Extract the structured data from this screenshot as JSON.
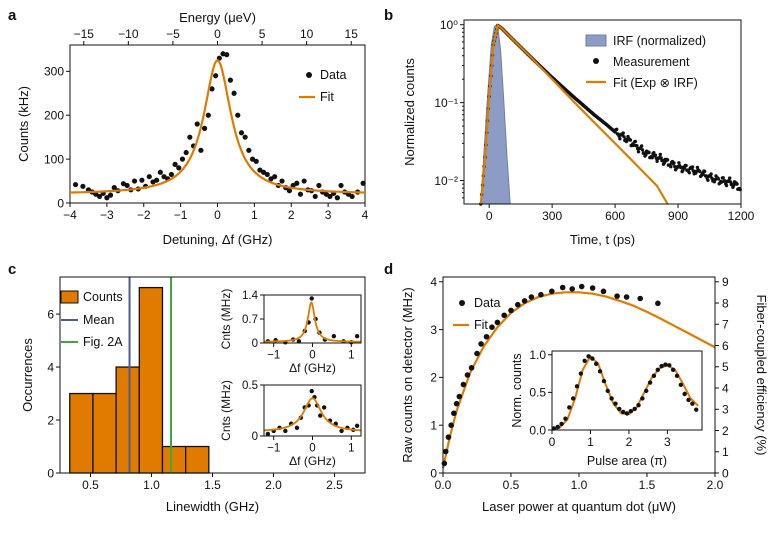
{
  "colors": {
    "fit": "#E07B00",
    "irf": "#8C9CC4",
    "bar": "#E07B00",
    "mean": "#4A5C90",
    "fig2a": "#3BAA3B",
    "data": "#111111"
  },
  "chart_data": [
    {
      "id": "a",
      "panel_label": "a",
      "type": "scatter",
      "xlabel": "Detuning, Δf (GHz)",
      "ylabel": "Counts (kHz)",
      "top_axis_label": "Energy (μeV)",
      "xlim": [
        -4,
        4
      ],
      "ylim": [
        0,
        360
      ],
      "xticks": [
        -4,
        -3,
        -2,
        -1,
        0,
        1,
        2,
        3,
        4
      ],
      "xtick_labels": [
        "−4",
        "−3",
        "−2",
        "−1",
        "0",
        "1",
        "2",
        "3",
        "4"
      ],
      "yticks": [
        0,
        100,
        200,
        300
      ],
      "ytick_labels": [
        "0",
        "100",
        "200",
        "300"
      ],
      "top_ticks": [
        -15,
        -10,
        -5,
        0,
        5,
        10,
        15
      ],
      "top_tick_labels": [
        "−15",
        "−10",
        "−5",
        "0",
        "5",
        "10",
        "15"
      ],
      "ev_per_ghz": 4.136,
      "legend": [
        "Data",
        "Fit"
      ],
      "fit": {
        "model": "lorentzian",
        "amplitude": 305,
        "offset": 20,
        "center": 0,
        "fwhm": 0.9
      },
      "series": [
        {
          "name": "Data",
          "x": [
            -3.85,
            -3.65,
            -3.5,
            -3.4,
            -3.3,
            -3.2,
            -3.1,
            -3.0,
            -2.9,
            -2.8,
            -2.7,
            -2.55,
            -2.45,
            -2.35,
            -2.25,
            -2.15,
            -2.05,
            -1.95,
            -1.85,
            -1.75,
            -1.65,
            -1.55,
            -1.45,
            -1.35,
            -1.25,
            -1.15,
            -1.05,
            -0.95,
            -0.85,
            -0.75,
            -0.65,
            -0.55,
            -0.45,
            -0.35,
            -0.25,
            -0.15,
            -0.05,
            0.05,
            0.15,
            0.25,
            0.35,
            0.45,
            0.55,
            0.65,
            0.75,
            0.85,
            0.95,
            1.05,
            1.15,
            1.25,
            1.35,
            1.45,
            1.55,
            1.65,
            1.75,
            1.85,
            1.95,
            2.05,
            2.15,
            2.25,
            2.35,
            2.45,
            2.55,
            2.65,
            2.75,
            2.85,
            2.95,
            3.05,
            3.15,
            3.25,
            3.35,
            3.45,
            3.55,
            3.65,
            3.8,
            3.95
          ],
          "y": [
            42,
            38,
            30,
            25,
            20,
            15,
            22,
            12,
            18,
            35,
            28,
            44,
            40,
            30,
            50,
            32,
            52,
            38,
            60,
            48,
            52,
            70,
            60,
            55,
            65,
            88,
            80,
            100,
            115,
            150,
            130,
            180,
            120,
            170,
            200,
            260,
            290,
            330,
            340,
            338,
            280,
            250,
            200,
            160,
            150,
            120,
            100,
            95,
            75,
            70,
            65,
            55,
            60,
            40,
            50,
            35,
            28,
            40,
            45,
            20,
            50,
            30,
            28,
            15,
            40,
            25,
            20,
            15,
            22,
            12,
            40,
            25,
            20,
            15,
            25,
            45
          ]
        }
      ]
    },
    {
      "id": "b",
      "panel_label": "b",
      "type": "line",
      "xlabel": "Time, t (ps)",
      "ylabel": "Normalized counts",
      "xlim": [
        -120,
        1200
      ],
      "ylim": [
        0.005,
        1.15
      ],
      "yscale": "log",
      "xticks": [
        0,
        300,
        600,
        900,
        1200
      ],
      "xtick_labels": [
        "0",
        "300",
        "600",
        "900",
        "1200"
      ],
      "yticks": [
        0.01,
        0.1,
        1
      ],
      "ytick_labels": [
        "10⁻²",
        "10⁻¹",
        "10⁰"
      ],
      "legend": [
        "IRF (normalized)",
        "Measurement",
        "Fit (Exp ⊗ IRF)"
      ],
      "irf": {
        "x": [
          -40,
          -10,
          10,
          25,
          40,
          55,
          70,
          85,
          100
        ],
        "y": [
          0.005,
          0.1,
          0.55,
          0.95,
          1.0,
          0.45,
          0.1,
          0.02,
          0.005
        ]
      },
      "fit": {
        "x": [
          -40,
          -20,
          0,
          20,
          40,
          60,
          100,
          200,
          300,
          400,
          500,
          600,
          700,
          800,
          850
        ],
        "y": [
          0.005,
          0.02,
          0.12,
          0.55,
          0.98,
          0.9,
          0.7,
          0.38,
          0.2,
          0.105,
          0.056,
          0.03,
          0.016,
          0.0085,
          0.005
        ]
      },
      "measurement": {
        "x": [
          -40,
          -20,
          0,
          20,
          40,
          60,
          100,
          200,
          300,
          400,
          500,
          560,
          600,
          650,
          700,
          750,
          800,
          850,
          900,
          950,
          1000,
          1050,
          1100,
          1150,
          1200
        ],
        "y": [
          0.005,
          0.02,
          0.12,
          0.55,
          0.98,
          0.9,
          0.7,
          0.38,
          0.21,
          0.12,
          0.07,
          0.052,
          0.042,
          0.035,
          0.028,
          0.022,
          0.02,
          0.017,
          0.015,
          0.014,
          0.013,
          0.011,
          0.01,
          0.0095,
          0.008
        ]
      }
    },
    {
      "id": "c",
      "panel_label": "c",
      "type": "bar",
      "xlabel": "Linewidth (GHz)",
      "ylabel": "Occurrences",
      "xlim": [
        0.25,
        2.75
      ],
      "ylim": [
        0,
        7.4
      ],
      "xticks": [
        0.5,
        1.0,
        1.5,
        2.0,
        2.5
      ],
      "xtick_labels": [
        "0.5",
        "1.0",
        "1.5",
        "2.0",
        "2.5"
      ],
      "yticks": [
        0,
        2,
        4,
        6
      ],
      "ytick_labels": [
        "0",
        "2",
        "4",
        "6"
      ],
      "bin_edges": [
        0.33,
        0.52,
        0.71,
        0.9,
        1.09,
        1.28,
        1.47
      ],
      "values": [
        3,
        3,
        4,
        7,
        1,
        1
      ],
      "mean": 0.82,
      "fig2a": 1.16,
      "legend": [
        "Counts",
        "Mean",
        "Fig. 2A"
      ]
    },
    {
      "id": "c_inset1",
      "type": "scatter",
      "xlabel": "Δf (GHz)",
      "ylabel": "Cnts (MHz)",
      "xlim": [
        -1.25,
        1.25
      ],
      "ylim": [
        0,
        1.4
      ],
      "xticks": [
        -1,
        0,
        1
      ],
      "xtick_labels": [
        "−1",
        "0",
        "1"
      ],
      "yticks": [
        0,
        0.7,
        1.4
      ],
      "ytick_labels": [
        "0",
        "0.7",
        "1.4"
      ],
      "fit": {
        "model": "lorentzian",
        "amplitude": 1.15,
        "offset": 0.03,
        "center": -0.03,
        "fwhm": 0.22
      },
      "series": [
        {
          "name": "Data",
          "x": [
            -1.15,
            -0.95,
            -0.7,
            -0.5,
            -0.35,
            -0.2,
            -0.1,
            -0.02,
            0.08,
            0.18,
            0.32,
            0.55,
            0.8,
            1.0,
            1.15
          ],
          "y": [
            0.05,
            0.08,
            0.02,
            0.1,
            0.05,
            0.35,
            0.6,
            1.3,
            0.7,
            0.3,
            0.1,
            0.2,
            0.05,
            0.02,
            0.2
          ]
        }
      ]
    },
    {
      "id": "c_inset2",
      "type": "scatter",
      "xlabel": "Δf (GHz)",
      "ylabel": "Cnts (MHz)",
      "xlim": [
        -1.25,
        1.25
      ],
      "ylim": [
        0,
        0.5
      ],
      "xticks": [
        -1,
        0,
        1
      ],
      "xtick_labels": [
        "−1",
        "0",
        "1"
      ],
      "yticks": [
        0,
        0.5
      ],
      "ytick_labels": [
        "0",
        "0.5"
      ],
      "fit": {
        "model": "lorentzian",
        "amplitude": 0.33,
        "offset": 0.04,
        "center": 0.0,
        "fwhm": 0.55
      },
      "series": [
        {
          "name": "Data",
          "x": [
            -1.15,
            -1.0,
            -0.85,
            -0.7,
            -0.55,
            -0.4,
            -0.3,
            -0.2,
            -0.1,
            -0.02,
            0.05,
            0.12,
            0.2,
            0.3,
            0.45,
            0.6,
            0.75,
            0.9,
            1.05,
            1.15
          ],
          "y": [
            0.02,
            0.05,
            0.08,
            0.05,
            0.12,
            0.08,
            0.18,
            0.28,
            0.3,
            0.44,
            0.38,
            0.3,
            0.2,
            0.28,
            0.15,
            0.12,
            0.05,
            0.08,
            0.06,
            0.1
          ]
        }
      ]
    },
    {
      "id": "d",
      "panel_label": "d",
      "type": "scatter",
      "xlabel": "Laser power at quantum dot (μW)",
      "ylabel": "Raw counts on detector (MHz)",
      "ylabel_right": "Fiber-coupled efficiency (%)",
      "xlim": [
        0,
        2.0
      ],
      "ylim": [
        0,
        4.1
      ],
      "xticks": [
        0,
        0.5,
        1.0,
        1.5,
        2.0
      ],
      "xtick_labels": [
        "0.0",
        "0.5",
        "1.0",
        "1.5",
        "2.0"
      ],
      "yticks": [
        0,
        1,
        2,
        3,
        4
      ],
      "ytick_labels": [
        "0",
        "1",
        "2",
        "3",
        "4"
      ],
      "yticks_right": [
        0,
        1,
        2,
        3,
        4,
        5,
        6,
        7,
        8,
        9
      ],
      "ytick_labels_right": [
        "0",
        "1",
        "2",
        "3",
        "4",
        "5",
        "6",
        "7",
        "8",
        "9"
      ],
      "right_per_left": 2.25,
      "legend": [
        "Data",
        "Fit"
      ],
      "fit": {
        "x": [
          0,
          0.05,
          0.1,
          0.2,
          0.3,
          0.4,
          0.5,
          0.6,
          0.7,
          0.8,
          0.9,
          1.0,
          1.1,
          1.2,
          1.3,
          1.4,
          1.5,
          1.6,
          1.7,
          1.8,
          1.9,
          2.0
        ],
        "y": [
          0.1,
          0.75,
          1.3,
          2.1,
          2.65,
          3.05,
          3.35,
          3.55,
          3.68,
          3.75,
          3.78,
          3.78,
          3.75,
          3.69,
          3.6,
          3.5,
          3.37,
          3.23,
          3.08,
          2.93,
          2.78,
          2.63
        ]
      },
      "series": [
        {
          "name": "Data",
          "x": [
            0.01,
            0.02,
            0.04,
            0.06,
            0.08,
            0.1,
            0.12,
            0.15,
            0.18,
            0.21,
            0.25,
            0.28,
            0.32,
            0.36,
            0.4,
            0.45,
            0.5,
            0.55,
            0.6,
            0.65,
            0.72,
            0.8,
            0.88,
            0.95,
            1.02,
            1.1,
            1.18,
            1.28,
            1.35,
            1.45,
            1.58
          ],
          "y": [
            0.2,
            0.45,
            0.75,
            1.0,
            1.25,
            1.45,
            1.6,
            1.85,
            2.05,
            2.2,
            2.5,
            2.7,
            2.85,
            3.05,
            3.15,
            3.3,
            3.4,
            3.52,
            3.6,
            3.68,
            3.73,
            3.8,
            3.88,
            3.85,
            3.9,
            3.87,
            3.8,
            3.7,
            3.68,
            3.65,
            3.55
          ]
        }
      ]
    },
    {
      "id": "d_inset",
      "type": "scatter",
      "xlabel": "Pulse area (π)",
      "ylabel": "Norm. counts",
      "xlim": [
        0,
        3.9
      ],
      "ylim": [
        0,
        1.05
      ],
      "xticks": [
        0,
        1,
        2,
        3
      ],
      "xtick_labels": [
        "0",
        "1",
        "2",
        "3"
      ],
      "yticks": [
        0,
        0.5,
        1.0
      ],
      "ytick_labels": [
        "0.0",
        "0.5",
        "1.0"
      ],
      "fit": {
        "x": [
          0,
          0.2,
          0.4,
          0.6,
          0.8,
          1.0,
          1.2,
          1.4,
          1.6,
          1.8,
          2.0,
          2.2,
          2.4,
          2.6,
          2.8,
          3.0,
          3.2,
          3.4,
          3.6,
          3.8
        ],
        "y": [
          0.0,
          0.03,
          0.14,
          0.42,
          0.8,
          0.98,
          0.88,
          0.6,
          0.35,
          0.22,
          0.21,
          0.3,
          0.5,
          0.7,
          0.82,
          0.86,
          0.8,
          0.62,
          0.42,
          0.32
        ]
      },
      "series": [
        {
          "name": "Data",
          "x": [
            0.05,
            0.15,
            0.25,
            0.35,
            0.45,
            0.55,
            0.65,
            0.75,
            0.85,
            0.95,
            1.05,
            1.15,
            1.25,
            1.35,
            1.45,
            1.55,
            1.65,
            1.75,
            1.85,
            1.95,
            2.05,
            2.15,
            2.25,
            2.35,
            2.45,
            2.55,
            2.65,
            2.75,
            2.85,
            2.95,
            3.05,
            3.15,
            3.25,
            3.35,
            3.45,
            3.55,
            3.65,
            3.75
          ],
          "y": [
            0.02,
            0.04,
            0.08,
            0.15,
            0.3,
            0.42,
            0.58,
            0.75,
            0.92,
            0.98,
            0.95,
            0.88,
            0.78,
            0.65,
            0.52,
            0.42,
            0.35,
            0.28,
            0.24,
            0.22,
            0.25,
            0.28,
            0.33,
            0.42,
            0.52,
            0.63,
            0.72,
            0.8,
            0.85,
            0.87,
            0.86,
            0.8,
            0.72,
            0.6,
            0.48,
            0.4,
            0.35,
            0.27
          ]
        }
      ]
    }
  ]
}
